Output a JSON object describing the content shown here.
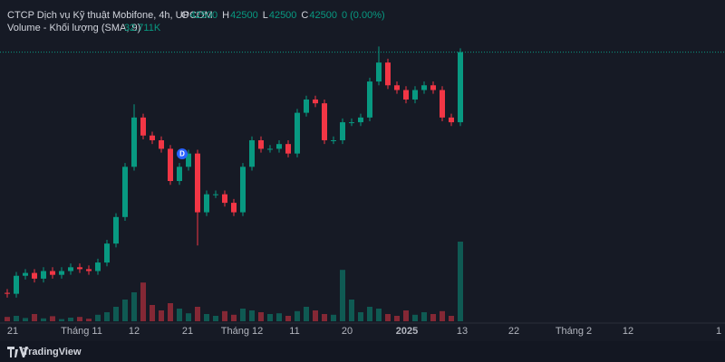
{
  "chart_data": {
    "type": "candlestick",
    "title": "CTCP Dịch vụ Kỹ thuật Mobifone, 4h, UPCOM",
    "ohlc_legend": [
      {
        "label": "O",
        "value": 42500
      },
      {
        "label": "H",
        "value": 42500
      },
      {
        "label": "L",
        "value": 42500
      },
      {
        "label": "C",
        "value": 42500
      }
    ],
    "change": "0 (0.00%)",
    "volume_title": "Volume - Khối lượng (SMA, 9)",
    "volume_sma": "32.711K",
    "marker": "D",
    "logo": "TradingView",
    "up_color": "#089981",
    "down_color": "#f23645",
    "open": [
      17100,
      17000,
      18900,
      19200,
      18600,
      19400,
      19000,
      19400,
      19800,
      19600,
      19400,
      20300,
      22300,
      25100,
      30400,
      35600,
      33700,
      33200,
      32300,
      28900,
      30400,
      31800,
      25600,
      27500,
      27500,
      26600,
      25600,
      30400,
      33200,
      32300,
      32300,
      32800,
      31800,
      36100,
      37500,
      37100,
      33200,
      33200,
      35100,
      35100,
      35600,
      39400,
      41400,
      39000,
      38500,
      37500,
      38500,
      39000,
      38500,
      35600,
      35100
    ],
    "high": [
      17500,
      19300,
      19600,
      19600,
      19800,
      19800,
      19800,
      20200,
      20200,
      20000,
      20700,
      22700,
      25500,
      30800,
      37000,
      36000,
      34100,
      33600,
      32700,
      30800,
      32200,
      32200,
      27900,
      27900,
      27900,
      27000,
      30800,
      33600,
      33600,
      32700,
      33200,
      33200,
      36500,
      37900,
      37900,
      37500,
      33600,
      35500,
      35500,
      36000,
      39800,
      43100,
      41800,
      39400,
      38900,
      38900,
      39400,
      39400,
      38900,
      36000,
      42900
    ],
    "low": [
      16600,
      16600,
      18500,
      18200,
      18200,
      18600,
      18600,
      19000,
      19200,
      19000,
      19000,
      19900,
      21900,
      24700,
      30000,
      33300,
      32800,
      31900,
      28500,
      28500,
      30000,
      22100,
      25200,
      27100,
      26200,
      25200,
      25200,
      30000,
      31900,
      31900,
      31900,
      31400,
      31400,
      35700,
      36700,
      32800,
      32800,
      32800,
      34700,
      34700,
      35200,
      39000,
      38600,
      38100,
      37100,
      37100,
      38100,
      38100,
      35200,
      34700,
      34700
    ],
    "close": [
      17000,
      18900,
      19200,
      18600,
      19400,
      19000,
      19400,
      19800,
      19600,
      19400,
      20300,
      22300,
      25100,
      30400,
      35600,
      33700,
      33200,
      32300,
      28900,
      30400,
      31800,
      25600,
      27500,
      27500,
      26600,
      25600,
      30400,
      33200,
      32300,
      32300,
      32800,
      31800,
      36100,
      37500,
      37100,
      33200,
      33200,
      35100,
      35100,
      35600,
      39400,
      41400,
      39000,
      38500,
      37500,
      38500,
      39000,
      38500,
      35600,
      35100,
      42500
    ],
    "volume": [
      12000,
      15000,
      9000,
      20000,
      8000,
      14000,
      6000,
      10000,
      12000,
      7000,
      18000,
      25000,
      40000,
      60000,
      80000,
      107000,
      45000,
      30000,
      50000,
      35000,
      22000,
      40000,
      20000,
      15000,
      28000,
      18000,
      35000,
      30000,
      25000,
      20000,
      22000,
      15000,
      28000,
      40000,
      30000,
      20000,
      18000,
      142000,
      60000,
      25000,
      40000,
      35000,
      20000,
      15000,
      30000,
      18000,
      25000,
      20000,
      28000,
      15000,
      220000
    ],
    "xlim": [
      -0.8,
      79.2
    ],
    "ylim": [
      14100,
      48000
    ],
    "vlim": [
      0,
      500000
    ],
    "xticks": [
      {
        "value": 0.6,
        "label": "21"
      },
      {
        "value": 8.2,
        "label": "Tháng 11"
      },
      {
        "value": 14,
        "label": "12"
      },
      {
        "value": 19.9,
        "label": "21"
      },
      {
        "value": 25.9,
        "label": "Tháng 12"
      },
      {
        "value": 31.7,
        "label": "11"
      },
      {
        "value": 37.5,
        "label": "20"
      },
      {
        "value": 44.1,
        "label": "2025"
      },
      {
        "value": 50.2,
        "label": "13"
      },
      {
        "value": 55.9,
        "label": "22"
      },
      {
        "value": 62.5,
        "label": "Tháng 2"
      },
      {
        "value": 68.5,
        "label": "12"
      },
      {
        "value": 78.2,
        "label": "1"
      }
    ]
  }
}
